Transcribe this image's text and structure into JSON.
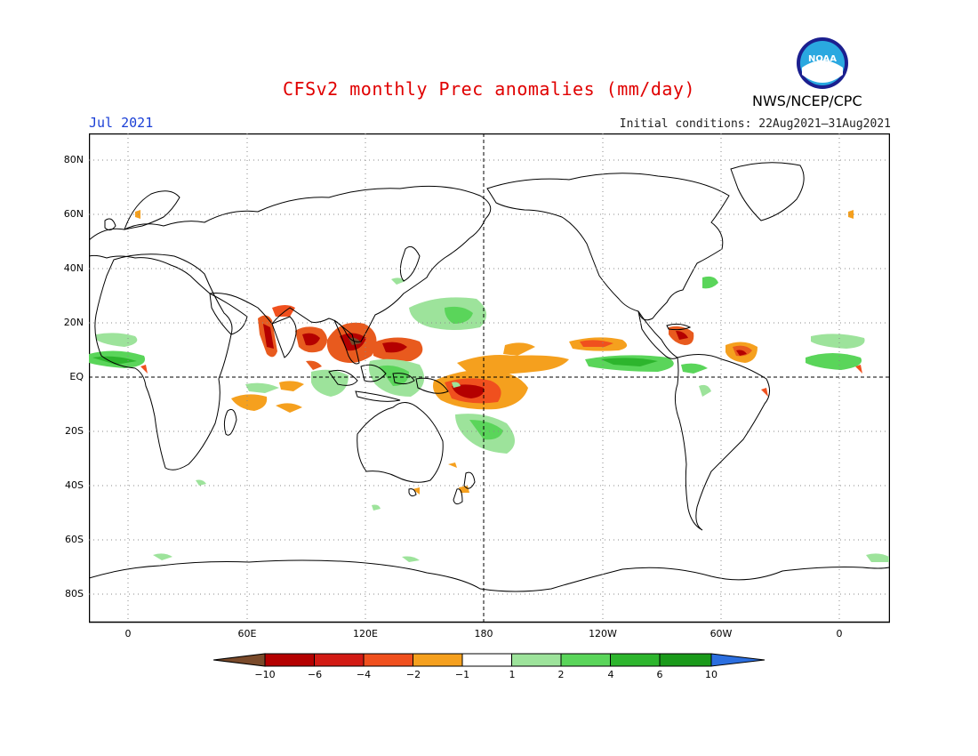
{
  "title": "CFSv2 monthly Prec anomalies (mm/day)",
  "month_label": "Jul 2021",
  "initial_conditions": "Initial conditions: 22Aug2021–31Aug2021",
  "agency": "NWS/NCEP/CPC",
  "logo_text": "NOAA",
  "lat_labels": [
    "80N",
    "60N",
    "40N",
    "20N",
    "EQ",
    "20S",
    "40S",
    "60S",
    "80S"
  ],
  "lon_labels": [
    "0",
    "60E",
    "120E",
    "180",
    "120W",
    "60W",
    "0"
  ],
  "colorbar": {
    "labels": [
      "−10",
      "−6",
      "−4",
      "−2",
      "−1",
      "1",
      "2",
      "4",
      "6",
      "10"
    ],
    "colors": [
      "#7a4a2a",
      "#b40000",
      "#d21a14",
      "#f0501e",
      "#f5a01e",
      "#ffffff",
      "#9de39b",
      "#5ad55a",
      "#2db52d",
      "#1a9a1a",
      "#2c6fe0"
    ]
  }
}
